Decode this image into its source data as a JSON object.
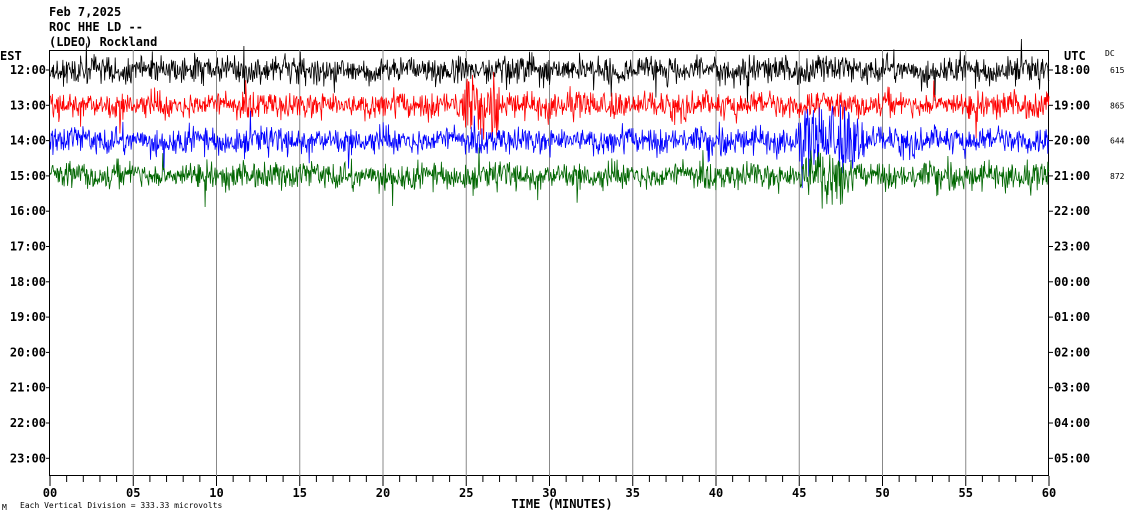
{
  "header": {
    "date": "Feb 7,2025",
    "station": "ROC HHE LD --",
    "network": "(LDEO) Rockland"
  },
  "chart_data": {
    "type": "line",
    "title": "",
    "xlabel": "TIME (MINUTES)",
    "left_axis_label": "EST",
    "right_axis_label": "UTC",
    "dc_label": "DC",
    "xlim": [
      0,
      60
    ],
    "x_ticks": [
      "00",
      "05",
      "10",
      "15",
      "20",
      "25",
      "30",
      "35",
      "40",
      "45",
      "50",
      "55",
      "60"
    ],
    "est_hours": [
      "12:00",
      "13:00",
      "14:00",
      "15:00",
      "16:00",
      "17:00",
      "18:00",
      "19:00",
      "20:00",
      "21:00",
      "22:00",
      "23:00"
    ],
    "utc_hours": [
      "18:00",
      "19:00",
      "20:00",
      "21:00",
      "22:00",
      "23:00",
      "00:00",
      "01:00",
      "02:00",
      "03:00",
      "04:00",
      "05:00"
    ],
    "traces": [
      {
        "hour_index": 0,
        "color": "#000000",
        "dc": "615"
      },
      {
        "hour_index": 1,
        "color": "#ff0000",
        "dc": "865"
      },
      {
        "hour_index": 2,
        "color": "#0000ff",
        "dc": "644"
      },
      {
        "hour_index": 3,
        "color": "#006600",
        "dc": "872"
      }
    ],
    "grid_vertical": true,
    "footer_note": "Each Vertical Division =  333.33 microvolts",
    "footer_symbol": "M"
  }
}
